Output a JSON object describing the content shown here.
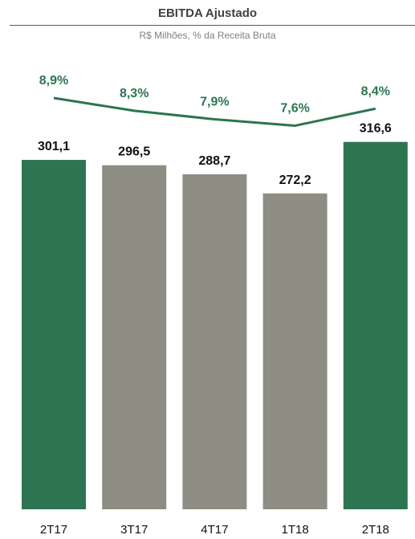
{
  "chart_data": {
    "type": "bar",
    "title": "EBITDA Ajustado",
    "subtitle": "R$ Milhões, % da Receita Bruta",
    "categories": [
      "2T17",
      "3T17",
      "4T17",
      "1T18",
      "2T18"
    ],
    "series": [
      {
        "name": "",
        "kind": "bar",
        "values": [
          301.1,
          296.5,
          288.7,
          272.2,
          316.6
        ],
        "labels": [
          "301,1",
          "296,5",
          "288,7",
          "272,2",
          "316,6"
        ],
        "colors": [
          "#2d7550",
          "#8d8d84",
          "#8d8d84",
          "#8d8d84",
          "#2d7550"
        ]
      },
      {
        "name": "",
        "kind": "line",
        "values": [
          8.9,
          8.3,
          7.9,
          7.6,
          8.4
        ],
        "labels": [
          "8,9%",
          "8,3%",
          "7,9%",
          "7,6%",
          "8,4%"
        ],
        "color": "#2c7550"
      }
    ],
    "grid": false,
    "legend": "none"
  }
}
